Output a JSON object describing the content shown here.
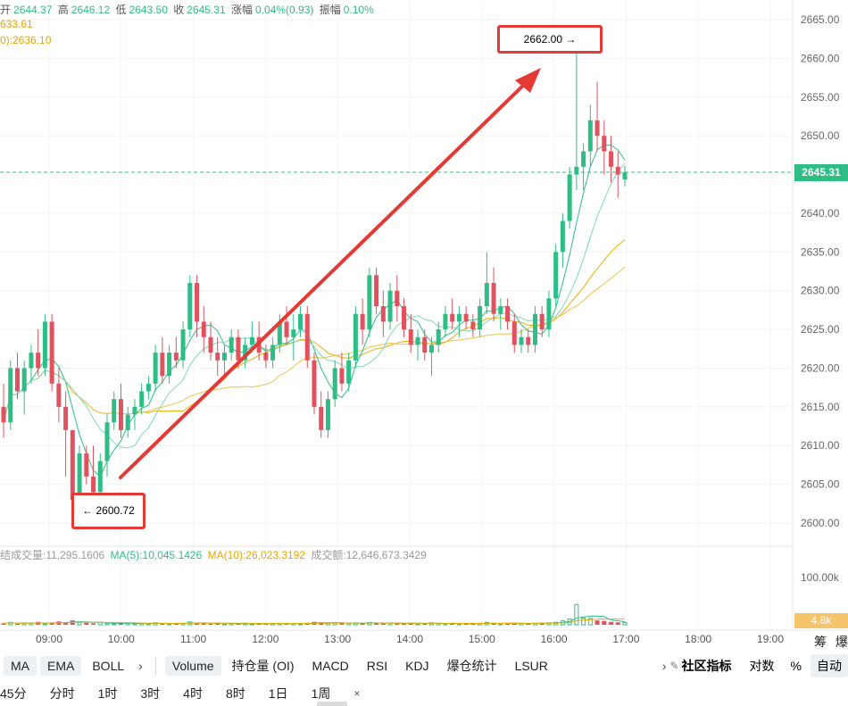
{
  "ohlc_line": {
    "open_label": "开",
    "open": "2644.37",
    "high_label": "高",
    "high": "2646.12",
    "low_label": "低",
    "low": "2643.50",
    "close_label": "收",
    "close": "2645.31",
    "change_label": "涨幅",
    "change": "0.04%(0.93)",
    "amplitude_label": "振幅",
    "amplitude": "0.10%"
  },
  "ma_line_1": "633.61",
  "ma_line_2": "0):2636.10",
  "current_price": "2645.31",
  "high_callout": "2662.00 →",
  "low_callout": "← 2600.72",
  "volume_info": {
    "total": "结成交量:11,295.1606",
    "ma5": "MA(5):10,045.1426",
    "ma10": "MA(10):26,023.3192",
    "amount": "成交额:12,646,673.3429"
  },
  "volume_current_label": "4.8k",
  "right_edge_labels": [
    "筹",
    "爆"
  ],
  "indicator_toolbar": {
    "main": [
      "MA",
      "EMA",
      "BOLL"
    ],
    "sub": [
      "Volume",
      "持仓量 (OI)",
      "MACD",
      "RSI",
      "KDJ",
      "爆仓统计",
      "LSUR"
    ],
    "community": "社区指标",
    "log": "对数",
    "percent": "%",
    "auto": "自动"
  },
  "intervals": [
    "45分",
    "分时",
    "1时",
    "3时",
    "4时",
    "8时",
    "1日",
    "1周",
    "×"
  ],
  "colors": {
    "up": "#2ebd85",
    "down": "#e0525e",
    "ma1": "#2ebd85",
    "ma2": "#e8b000",
    "arrow": "#e53935"
  },
  "chart_data": {
    "type": "candlestick",
    "y_ticks": [
      "2665.00",
      "2660.00",
      "2655.00",
      "2650.00",
      "2645.00",
      "2640.00",
      "2635.00",
      "2630.00",
      "2625.00",
      "2620.00",
      "2615.00",
      "2610.00",
      "2605.00",
      "2600.00"
    ],
    "y_range": [
      2598.0,
      2667.0
    ],
    "x_ticks": [
      "09:00",
      "10:00",
      "11:00",
      "12:00",
      "13:00",
      "14:00",
      "15:00",
      "16:00",
      "17:00",
      "18:00",
      "19:00"
    ],
    "volume_ticks": [
      "100.00k"
    ],
    "candles": [
      [
        2615,
        2618,
        2611,
        2613
      ],
      [
        2613,
        2621,
        2612,
        2620
      ],
      [
        2620,
        2622,
        2616,
        2617
      ],
      [
        2617,
        2621,
        2614,
        2620
      ],
      [
        2620,
        2623,
        2618,
        2622
      ],
      [
        2622,
        2625,
        2619,
        2620
      ],
      [
        2620,
        2627,
        2619,
        2626
      ],
      [
        2626,
        2627,
        2617,
        2618
      ],
      [
        2618,
        2620,
        2613,
        2615
      ],
      [
        2615,
        2617,
        2606,
        2612
      ],
      [
        2612,
        2612,
        2601,
        2603
      ],
      [
        2603,
        2610,
        2600.72,
        2609
      ],
      [
        2609,
        2610,
        2605,
        2606
      ],
      [
        2606,
        2610,
        2602,
        2604
      ],
      [
        2604,
        2609,
        2603,
        2608
      ],
      [
        2608,
        2614,
        2606,
        2613
      ],
      [
        2613,
        2617,
        2612,
        2616
      ],
      [
        2616,
        2618,
        2611,
        2612
      ],
      [
        2612,
        2615,
        2611,
        2614
      ],
      [
        2614,
        2616,
        2612,
        2615
      ],
      [
        2615,
        2618,
        2614,
        2617
      ],
      [
        2617,
        2619,
        2616,
        2618
      ],
      [
        2618,
        2623,
        2617,
        2622
      ],
      [
        2622,
        2624,
        2618,
        2619
      ],
      [
        2619,
        2623,
        2618,
        2622
      ],
      [
        2622,
        2624,
        2620,
        2621
      ],
      [
        2621,
        2626,
        2620,
        2625
      ],
      [
        2625,
        2632,
        2624,
        2631
      ],
      [
        2631,
        2632,
        2624,
        2626
      ],
      [
        2626,
        2628,
        2622,
        2624
      ],
      [
        2624,
        2626,
        2621,
        2622
      ],
      [
        2622,
        2624,
        2619,
        2621
      ],
      [
        2621,
        2623,
        2619,
        2622
      ],
      [
        2622,
        2625,
        2621,
        2624
      ],
      [
        2624,
        2625,
        2620,
        2621
      ],
      [
        2621,
        2624,
        2620,
        2623
      ],
      [
        2623,
        2626,
        2622,
        2624
      ],
      [
        2624,
        2626,
        2621,
        2622
      ],
      [
        2622,
        2623,
        2620,
        2621
      ],
      [
        2621,
        2624,
        2620,
        2623
      ],
      [
        2623,
        2627,
        2622,
        2626
      ],
      [
        2626,
        2628,
        2623,
        2624
      ],
      [
        2624,
        2627,
        2621,
        2625
      ],
      [
        2625,
        2628,
        2624,
        2627
      ],
      [
        2627,
        2628,
        2620,
        2621
      ],
      [
        2621,
        2622,
        2614,
        2615
      ],
      [
        2615,
        2617,
        2611,
        2612
      ],
      [
        2612,
        2617,
        2611,
        2616
      ],
      [
        2616,
        2621,
        2615,
        2620
      ],
      [
        2620,
        2622,
        2617,
        2618
      ],
      [
        2618,
        2622,
        2617,
        2621
      ],
      [
        2621,
        2628,
        2620,
        2627
      ],
      [
        2627,
        2629,
        2623,
        2625
      ],
      [
        2625,
        2633,
        2624,
        2632
      ],
      [
        2632,
        2633,
        2627,
        2628
      ],
      [
        2628,
        2630,
        2624,
        2626
      ],
      [
        2626,
        2631,
        2625,
        2630
      ],
      [
        2630,
        2632,
        2626,
        2628
      ],
      [
        2628,
        2629,
        2624,
        2625
      ],
      [
        2625,
        2627,
        2622,
        2623
      ],
      [
        2623,
        2625,
        2621,
        2624
      ],
      [
        2624,
        2625,
        2621,
        2622
      ],
      [
        2622,
        2624,
        2619,
        2623
      ],
      [
        2623,
        2626,
        2622,
        2625
      ],
      [
        2625,
        2628,
        2624,
        2627
      ],
      [
        2627,
        2629,
        2625,
        2626
      ],
      [
        2626,
        2628,
        2624,
        2627
      ],
      [
        2627,
        2628,
        2625,
        2626
      ],
      [
        2626,
        2627,
        2624,
        2625
      ],
      [
        2625,
        2629,
        2624,
        2628
      ],
      [
        2628,
        2635,
        2627,
        2631
      ],
      [
        2631,
        2633,
        2626,
        2627
      ],
      [
        2627,
        2629,
        2625,
        2628
      ],
      [
        2628,
        2629,
        2625,
        2626
      ],
      [
        2626,
        2627,
        2622,
        2623
      ],
      [
        2623,
        2625,
        2622,
        2624
      ],
      [
        2624,
        2625,
        2622,
        2623
      ],
      [
        2623,
        2628,
        2622,
        2627
      ],
      [
        2627,
        2628,
        2624,
        2625
      ],
      [
        2625,
        2630,
        2624,
        2629
      ],
      [
        2629,
        2636,
        2628,
        2635
      ],
      [
        2635,
        2640,
        2633,
        2639
      ],
      [
        2639,
        2646,
        2638,
        2645
      ],
      [
        2645,
        2662,
        2643,
        2646
      ],
      [
        2646,
        2649,
        2643,
        2648
      ],
      [
        2648,
        2654,
        2646,
        2652
      ],
      [
        2652,
        2657,
        2648,
        2650
      ],
      [
        2650,
        2652,
        2645,
        2648
      ],
      [
        2648,
        2650,
        2644,
        2646
      ],
      [
        2646,
        2648,
        2642,
        2645
      ],
      [
        2644.37,
        2646.12,
        2643.5,
        2645.31
      ]
    ],
    "volumes": [
      3,
      5,
      2,
      4,
      3,
      6,
      2,
      4,
      7,
      5,
      9,
      6,
      4,
      3,
      5,
      3,
      2,
      4,
      3,
      2,
      3,
      2,
      4,
      3,
      2,
      3,
      3,
      6,
      4,
      3,
      2,
      3,
      2,
      3,
      2,
      3,
      2,
      3,
      2,
      3,
      3,
      2,
      3,
      2,
      4,
      6,
      5,
      3,
      4,
      3,
      3,
      4,
      3,
      5,
      3,
      3,
      4,
      3,
      3,
      3,
      2,
      3,
      4,
      3,
      2,
      3,
      2,
      3,
      2,
      3,
      5,
      3,
      2,
      3,
      4,
      3,
      2,
      3,
      4,
      4,
      5,
      8,
      12,
      42,
      14,
      13,
      9,
      8,
      6,
      5,
      4.8
    ]
  }
}
